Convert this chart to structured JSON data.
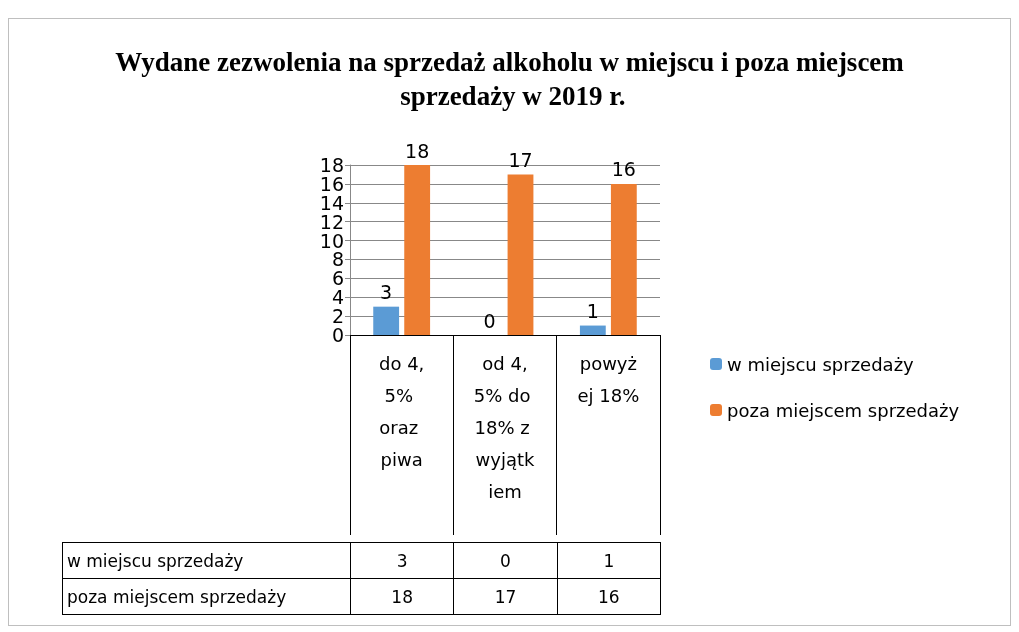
{
  "chart_data": {
    "type": "bar",
    "title": "Wydane zezwolenia na sprzedaż alkoholu w miejscu i poza miejscem sprzedaży w 2019 r.",
    "categories": [
      "do 4,5% oraz piwa",
      "od 4,5% do 18% z wyjątkiem",
      "powyżej 18%"
    ],
    "series": [
      {
        "name": "w miejscu sprzedaży",
        "color": "#5b9bd5",
        "values": [
          3,
          0,
          1
        ],
        "value_labels": [
          "3",
          "0",
          "1"
        ]
      },
      {
        "name": "poza miejscem sprzedaży",
        "color": "#ed7d31",
        "values": [
          18,
          17,
          16
        ],
        "value_labels": [
          "18",
          "17",
          "16"
        ]
      }
    ],
    "ylim": [
      0,
      18
    ],
    "yticks": [
      0,
      2,
      4,
      6,
      8,
      10,
      12,
      14,
      16,
      18
    ],
    "grid": "y",
    "legend": "right",
    "data_labels": true
  }
}
